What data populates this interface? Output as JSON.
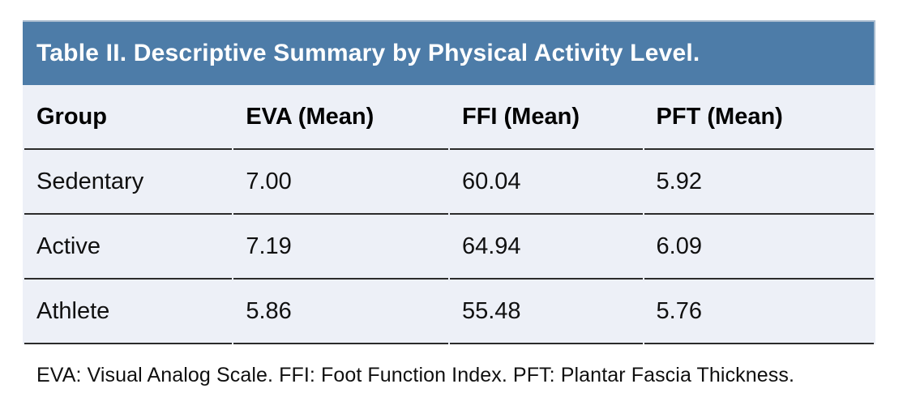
{
  "table": {
    "title": "Table II. Descriptive Summary by Physical Activity Level.",
    "columns": [
      "Group",
      "EVA (Mean)",
      "FFI (Mean)",
      "PFT (Mean)"
    ],
    "rows": [
      {
        "cells": [
          "Sedentary",
          "7.00",
          "60.04",
          "5.92"
        ]
      },
      {
        "cells": [
          "Active",
          "7.19",
          "64.94",
          "6.09"
        ]
      },
      {
        "cells": [
          "Athlete",
          "5.86",
          "55.48",
          "5.76"
        ]
      }
    ],
    "footnote": "EVA: Visual Analog Scale. FFI: Foot Function Index. PFT: Plantar Fascia Thickness."
  },
  "colors": {
    "title_bg": "#4d7ca8",
    "title_border": "#aabccf",
    "title_text": "#ffffff",
    "body_bg": "#edf0f7",
    "row_border": "#2b2b2b",
    "text": "#101010",
    "page_bg": "#ffffff"
  },
  "chart_data": {
    "type": "table",
    "title": "Table II. Descriptive Summary by Physical Activity Level.",
    "columns": [
      "Group",
      "EVA (Mean)",
      "FFI (Mean)",
      "PFT (Mean)"
    ],
    "rows": [
      [
        "Sedentary",
        7.0,
        60.04,
        5.92
      ],
      [
        "Active",
        7.19,
        64.94,
        6.09
      ],
      [
        "Athlete",
        5.86,
        55.48,
        5.76
      ]
    ],
    "footnote": "EVA: Visual Analog Scale. FFI: Foot Function Index. PFT: Plantar Fascia Thickness."
  }
}
